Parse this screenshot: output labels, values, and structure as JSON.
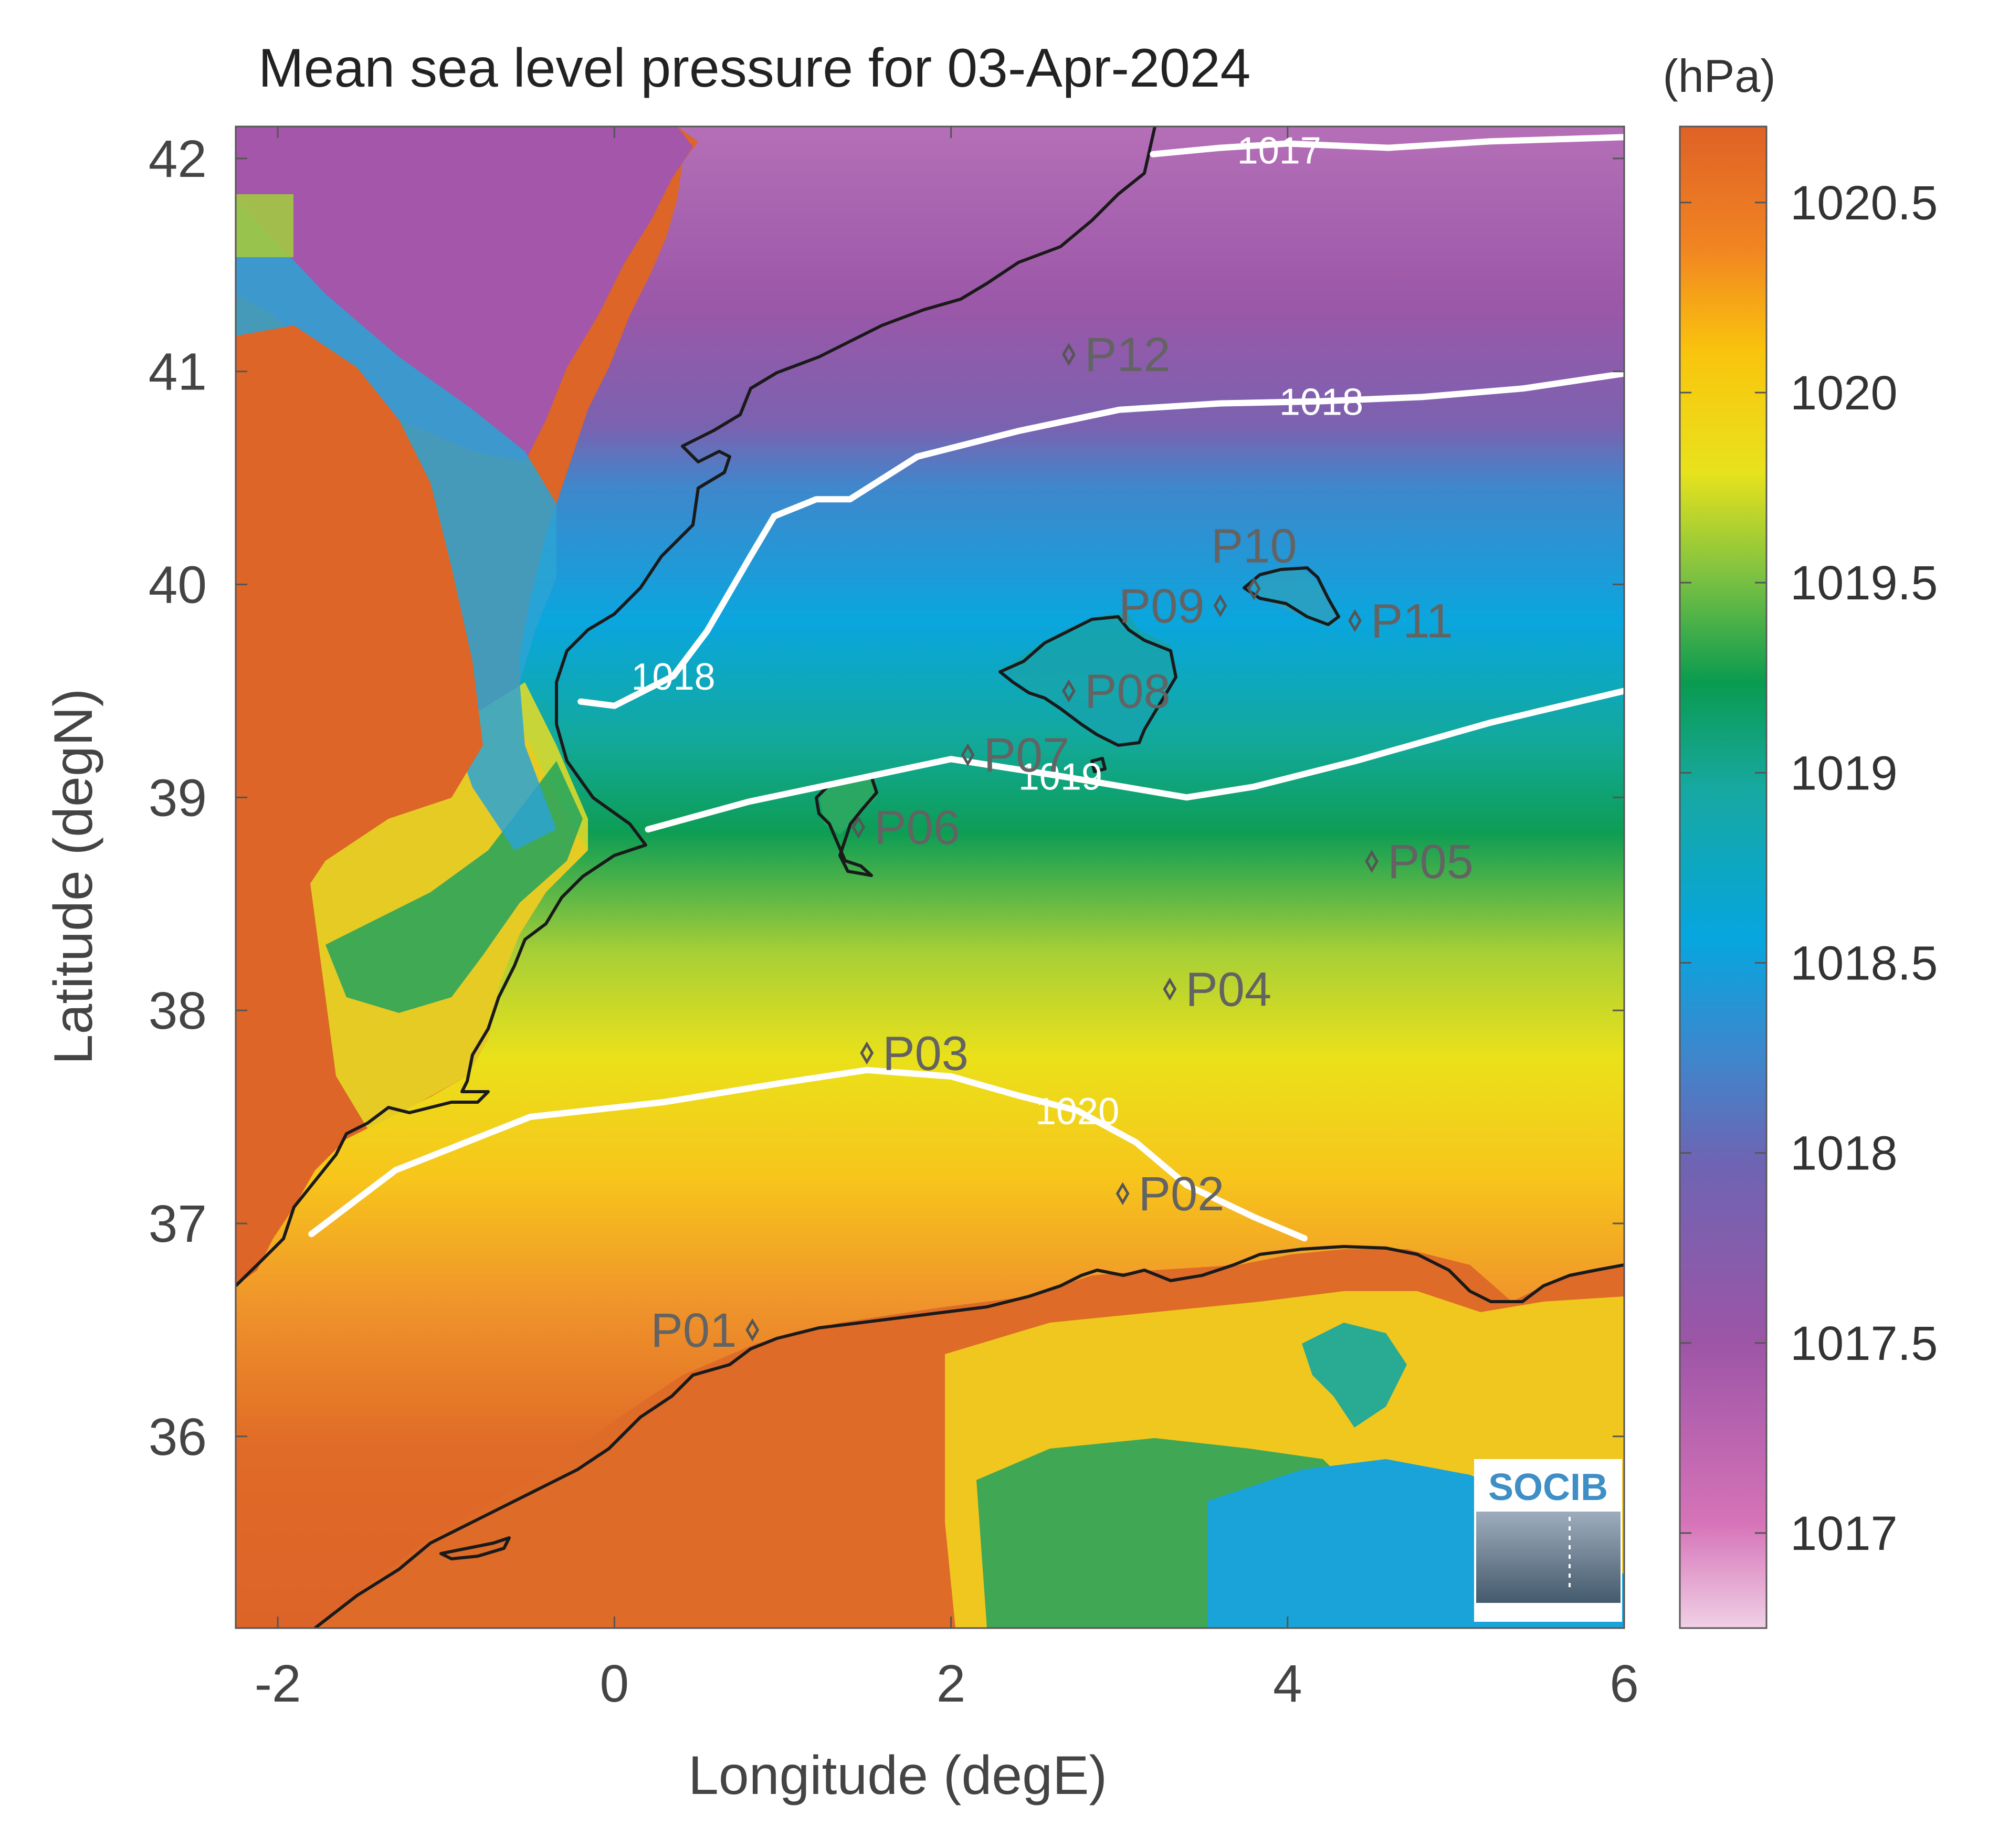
{
  "title": "Mean sea level pressure for 03-Apr-2024",
  "colorbar": {
    "unit": "(hPa)",
    "min": 1016.75,
    "max": 1020.7,
    "ticks": [
      "1020.5",
      "1020",
      "1019.5",
      "1019",
      "1018.5",
      "1018",
      "1017.5",
      "1017"
    ],
    "tick_values": [
      1020.5,
      1020,
      1019.5,
      1019,
      1018.5,
      1018,
      1017.5,
      1017
    ]
  },
  "axes": {
    "xlabel": "Longitude (degE)",
    "ylabel": "Latitude (degN)",
    "xlim": [
      -2.25,
      6.0
    ],
    "ylim": [
      35.1,
      42.15
    ],
    "xticks": [
      "-2",
      "0",
      "2",
      "4",
      "6"
    ],
    "xtick_values": [
      -2,
      0,
      2,
      4,
      6
    ],
    "yticks": [
      "42",
      "41",
      "40",
      "39",
      "38",
      "37",
      "36"
    ],
    "ytick_values": [
      42,
      41,
      40,
      39,
      38,
      37,
      36
    ]
  },
  "contours": [
    {
      "label": "1017",
      "label_lon": 3.95,
      "label_lat": 42.04,
      "points": [
        [
          3.2,
          42.02
        ],
        [
          3.6,
          42.05
        ],
        [
          4.0,
          42.07
        ],
        [
          4.6,
          42.05
        ],
        [
          5.2,
          42.08
        ],
        [
          6.0,
          42.1
        ]
      ]
    },
    {
      "label": "1018",
      "label_lon": 4.2,
      "label_lat": 40.86,
      "points": [
        [
          1.4,
          40.4
        ],
        [
          1.8,
          40.6
        ],
        [
          2.4,
          40.72
        ],
        [
          3.0,
          40.82
        ],
        [
          3.6,
          40.85
        ],
        [
          4.2,
          40.86
        ],
        [
          4.8,
          40.88
        ],
        [
          5.4,
          40.92
        ],
        [
          6.0,
          40.99
        ]
      ]
    },
    {
      "label": "1018",
      "label_lon": 0.35,
      "label_lat": 39.57,
      "points": [
        [
          -0.2,
          39.45
        ],
        [
          0.0,
          39.43
        ],
        [
          0.35,
          39.57
        ],
        [
          0.55,
          39.78
        ],
        [
          0.8,
          40.12
        ],
        [
          0.95,
          40.32
        ],
        [
          1.2,
          40.4
        ],
        [
          1.4,
          40.4
        ]
      ]
    },
    {
      "label": "1019",
      "label_lon": 2.65,
      "label_lat": 39.1,
      "points": [
        [
          0.2,
          38.85
        ],
        [
          0.8,
          38.98
        ],
        [
          1.4,
          39.08
        ],
        [
          2.0,
          39.18
        ],
        [
          2.65,
          39.1
        ],
        [
          3.4,
          39.0
        ],
        [
          3.8,
          39.05
        ],
        [
          4.4,
          39.17
        ],
        [
          5.2,
          39.35
        ],
        [
          6.0,
          39.5
        ]
      ]
    },
    {
      "label": "1020",
      "label_lon": 2.75,
      "label_lat": 37.53,
      "points": [
        [
          -1.8,
          36.95
        ],
        [
          -1.3,
          37.25
        ],
        [
          -0.5,
          37.5
        ],
        [
          0.3,
          37.57
        ],
        [
          1.0,
          37.66
        ],
        [
          1.5,
          37.72
        ],
        [
          2.0,
          37.69
        ],
        [
          2.4,
          37.6
        ],
        [
          2.75,
          37.53
        ],
        [
          3.1,
          37.38
        ],
        [
          3.4,
          37.18
        ],
        [
          3.8,
          37.03
        ],
        [
          4.1,
          36.93
        ]
      ]
    }
  ],
  "stations": [
    {
      "label": "P01",
      "lon": 0.82,
      "lat": 36.5,
      "label_side": "left"
    },
    {
      "label": "P02",
      "lon": 3.02,
      "lat": 37.14,
      "label_side": "right"
    },
    {
      "label": "P03",
      "lon": 1.5,
      "lat": 37.8,
      "label_side": "right"
    },
    {
      "label": "P04",
      "lon": 3.3,
      "lat": 38.1,
      "label_side": "right"
    },
    {
      "label": "P05",
      "lon": 4.5,
      "lat": 38.7,
      "label_side": "right"
    },
    {
      "label": "P06",
      "lon": 1.45,
      "lat": 38.86,
      "label_side": "right"
    },
    {
      "label": "P07",
      "lon": 2.1,
      "lat": 39.2,
      "label_side": "right"
    },
    {
      "label": "P08",
      "lon": 2.7,
      "lat": 39.5,
      "label_side": "right"
    },
    {
      "label": "P09",
      "lon": 3.6,
      "lat": 39.9,
      "label_side": "left"
    },
    {
      "label": "P10",
      "lon": 3.8,
      "lat": 39.98,
      "label_side": "above"
    },
    {
      "label": "P11",
      "lon": 4.4,
      "lat": 39.83,
      "label_side": "right"
    },
    {
      "label": "P12",
      "lon": 2.7,
      "lat": 41.08,
      "label_side": "right"
    }
  ],
  "logo": {
    "text": "SOCIB"
  }
}
